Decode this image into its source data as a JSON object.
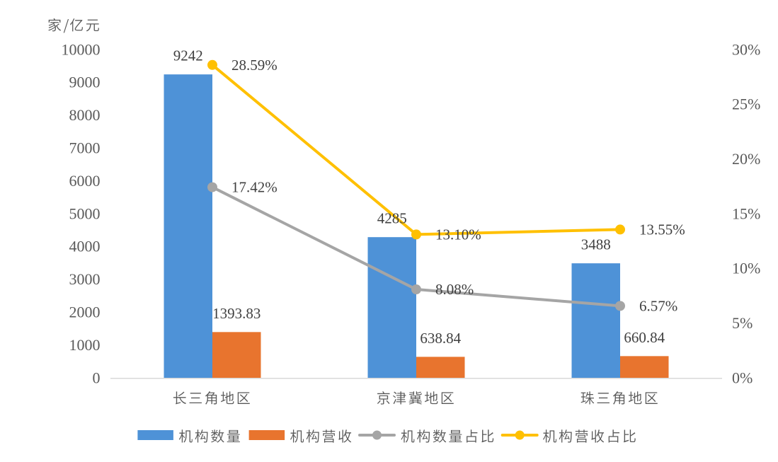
{
  "figure": {
    "background": "#FFFFFF"
  },
  "chart_data": {
    "type": "combo",
    "title": "",
    "categories": [
      "长三角地区",
      "京津冀地区",
      "珠三角地区"
    ],
    "series": [
      {
        "name": "机构数量",
        "chart_type": "bar",
        "axis": "left",
        "color": "#4E92D7",
        "values": [
          9242,
          4285,
          3488
        ],
        "data_labels": [
          "9242",
          "4285",
          "3488"
        ]
      },
      {
        "name": "机构营收",
        "chart_type": "bar",
        "axis": "left",
        "color": "#E8742E",
        "values": [
          1393.83,
          638.84,
          660.84
        ],
        "data_labels": [
          "1393.83",
          "638.84",
          "660.84"
        ]
      },
      {
        "name": "机构数量占比",
        "chart_type": "line",
        "axis": "right",
        "color": "#A5A5A5",
        "values": [
          17.42,
          8.08,
          6.57
        ],
        "data_labels": [
          "17.42%",
          "8.08%",
          "6.57%"
        ]
      },
      {
        "name": "机构营收占比",
        "chart_type": "line",
        "axis": "right",
        "color": "#FFC000",
        "values": [
          28.59,
          13.1,
          13.55
        ],
        "data_labels": [
          "28.59%",
          "13.10%",
          "13.55%"
        ]
      }
    ],
    "left_axis": {
      "title": "家/亿元",
      "min": 0,
      "max": 10000,
      "step": 1000,
      "tick_labels": [
        "0",
        "1000",
        "2000",
        "3000",
        "4000",
        "5000",
        "6000",
        "7000",
        "8000",
        "9000",
        "10000"
      ]
    },
    "right_axis": {
      "min": 0,
      "max": 30,
      "step": 5,
      "tick_labels": [
        "0%",
        "5%",
        "10%",
        "15%",
        "20%",
        "25%",
        "30%"
      ]
    },
    "legend": {
      "position": "bottom",
      "items": [
        "机构数量",
        "机构营收",
        "机构数量占比",
        "机构营收占比"
      ]
    },
    "gridlines": false
  },
  "style": {
    "axis_line_color": "#D9D9D9",
    "axis_tick_label_color": "#595959",
    "data_label_color": "#404040",
    "category_label_color": "#595959",
    "legend_text_color": "#595959",
    "axis_title_color": "#595959"
  }
}
